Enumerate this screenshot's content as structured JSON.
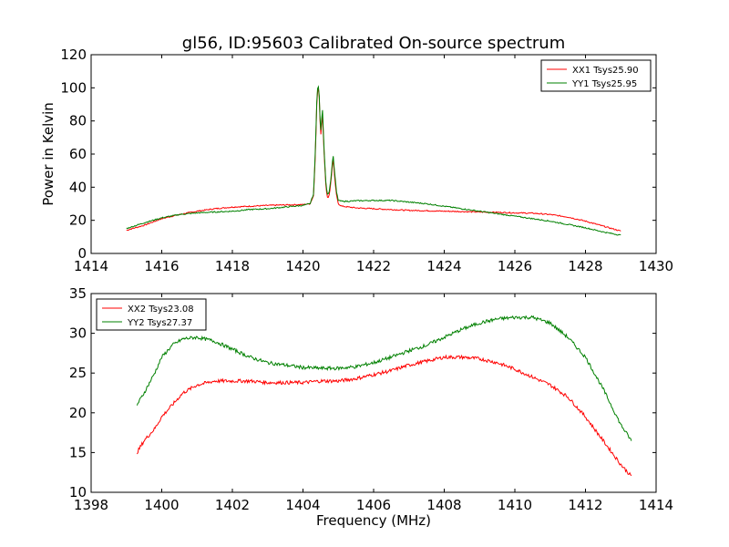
{
  "figure_title": "gl56, ID:95603 Calibrated On-source spectrum",
  "chart_data": [
    {
      "type": "line",
      "title": "gl56, ID:95603 Calibrated On-source spectrum",
      "xlabel": "",
      "ylabel": "Power in Kelvin",
      "xlim": [
        1414,
        1430
      ],
      "ylim": [
        0,
        120
      ],
      "xticks": [
        1414,
        1416,
        1418,
        1420,
        1422,
        1424,
        1426,
        1428,
        1430
      ],
      "yticks": [
        0,
        20,
        40,
        60,
        80,
        100,
        120
      ],
      "grid": false,
      "legend_position": "top-right",
      "series": [
        {
          "name": "XX1 Tsys25.90",
          "color": "#ff0000",
          "x": [
            1415.0,
            1415.5,
            1416.0,
            1416.5,
            1417.0,
            1417.5,
            1418.0,
            1418.5,
            1419.0,
            1419.5,
            1420.0,
            1420.2,
            1420.3,
            1420.35,
            1420.4,
            1420.45,
            1420.5,
            1420.55,
            1420.6,
            1420.65,
            1420.7,
            1420.75,
            1420.8,
            1420.85,
            1420.9,
            1420.95,
            1421.0,
            1421.1,
            1421.3,
            1421.5,
            1422.0,
            1422.5,
            1423.0,
            1423.5,
            1424.0,
            1424.5,
            1425.0,
            1425.5,
            1426.0,
            1426.5,
            1427.0,
            1427.5,
            1428.0,
            1428.5,
            1429.0
          ],
          "y": [
            14,
            17,
            21,
            23.5,
            25.5,
            27,
            28,
            28.5,
            29,
            29.3,
            29.5,
            30,
            35,
            60,
            97,
            100,
            70,
            85,
            60,
            40,
            33,
            36,
            45,
            58,
            45,
            35,
            30,
            28.5,
            28,
            27.5,
            27,
            26.5,
            26,
            25.8,
            25.5,
            25.3,
            25,
            24.8,
            24.5,
            24.3,
            23.5,
            22,
            19.5,
            16.5,
            13.5
          ]
        },
        {
          "name": "YY1 Tsys25.95",
          "color": "#008000",
          "x": [
            1415.0,
            1415.5,
            1416.0,
            1416.5,
            1417.0,
            1417.5,
            1418.0,
            1418.5,
            1419.0,
            1419.5,
            1420.0,
            1420.2,
            1420.3,
            1420.35,
            1420.4,
            1420.45,
            1420.5,
            1420.55,
            1420.6,
            1420.65,
            1420.7,
            1420.75,
            1420.8,
            1420.85,
            1420.9,
            1420.95,
            1421.0,
            1421.1,
            1421.3,
            1421.5,
            1422.0,
            1422.5,
            1423.0,
            1423.5,
            1424.0,
            1424.5,
            1425.0,
            1425.5,
            1426.0,
            1426.5,
            1427.0,
            1427.5,
            1428.0,
            1428.5,
            1429.0
          ],
          "y": [
            15,
            18.5,
            21.5,
            23.5,
            24.5,
            25,
            25.5,
            26.5,
            27,
            28,
            29,
            30,
            36,
            62,
            99,
            101,
            72,
            88,
            62,
            42,
            35,
            38,
            47,
            60,
            48,
            37,
            32,
            31.5,
            31.5,
            31.8,
            32,
            32,
            31,
            30,
            28.5,
            27,
            25.5,
            24,
            22.5,
            21,
            19.5,
            17.5,
            15.5,
            13,
            11
          ]
        }
      ]
    },
    {
      "type": "line",
      "title": "",
      "xlabel": "Frequency (MHz)",
      "ylabel": "",
      "xlim": [
        1398,
        1414
      ],
      "ylim": [
        10,
        35
      ],
      "xticks": [
        1398,
        1400,
        1402,
        1404,
        1406,
        1408,
        1410,
        1412,
        1414
      ],
      "yticks": [
        10,
        15,
        20,
        25,
        30,
        35
      ],
      "grid": false,
      "legend_position": "top-left",
      "series": [
        {
          "name": "XX2 Tsys23.08",
          "color": "#ff0000",
          "x": [
            1399.3,
            1399.5,
            1399.8,
            1400.0,
            1400.3,
            1400.6,
            1401.0,
            1401.5,
            1402.0,
            1402.5,
            1403.0,
            1403.5,
            1404.0,
            1404.5,
            1405.0,
            1405.5,
            1406.0,
            1406.5,
            1407.0,
            1407.5,
            1408.0,
            1408.5,
            1409.0,
            1409.5,
            1410.0,
            1410.5,
            1411.0,
            1411.5,
            1412.0,
            1412.5,
            1413.0,
            1413.3
          ],
          "y": [
            15,
            16.5,
            18,
            19.5,
            21,
            22.5,
            23.5,
            24,
            24,
            24,
            23.8,
            23.8,
            23.8,
            24,
            24,
            24.3,
            24.8,
            25.3,
            26,
            26.5,
            27,
            27,
            26.8,
            26.3,
            25.5,
            24.5,
            23.5,
            22,
            19.5,
            16.5,
            13.5,
            12
          ]
        },
        {
          "name": "YY2 Tsys27.37",
          "color": "#008000",
          "x": [
            1399.3,
            1399.5,
            1399.8,
            1400.0,
            1400.3,
            1400.6,
            1401.0,
            1401.5,
            1402.0,
            1402.5,
            1403.0,
            1403.5,
            1404.0,
            1404.5,
            1405.0,
            1405.5,
            1406.0,
            1406.5,
            1407.0,
            1407.5,
            1408.0,
            1408.5,
            1409.0,
            1409.5,
            1410.0,
            1410.5,
            1411.0,
            1411.5,
            1412.0,
            1412.5,
            1413.0,
            1413.3
          ],
          "y": [
            21,
            22.5,
            25,
            27,
            28.5,
            29.3,
            29.5,
            29,
            28,
            27,
            26.3,
            26,
            25.7,
            25.6,
            25.6,
            25.8,
            26.3,
            27,
            27.8,
            28.5,
            29.5,
            30.5,
            31.3,
            31.8,
            32,
            32,
            31.3,
            29.5,
            27,
            23,
            18.5,
            16.5
          ]
        }
      ]
    }
  ]
}
